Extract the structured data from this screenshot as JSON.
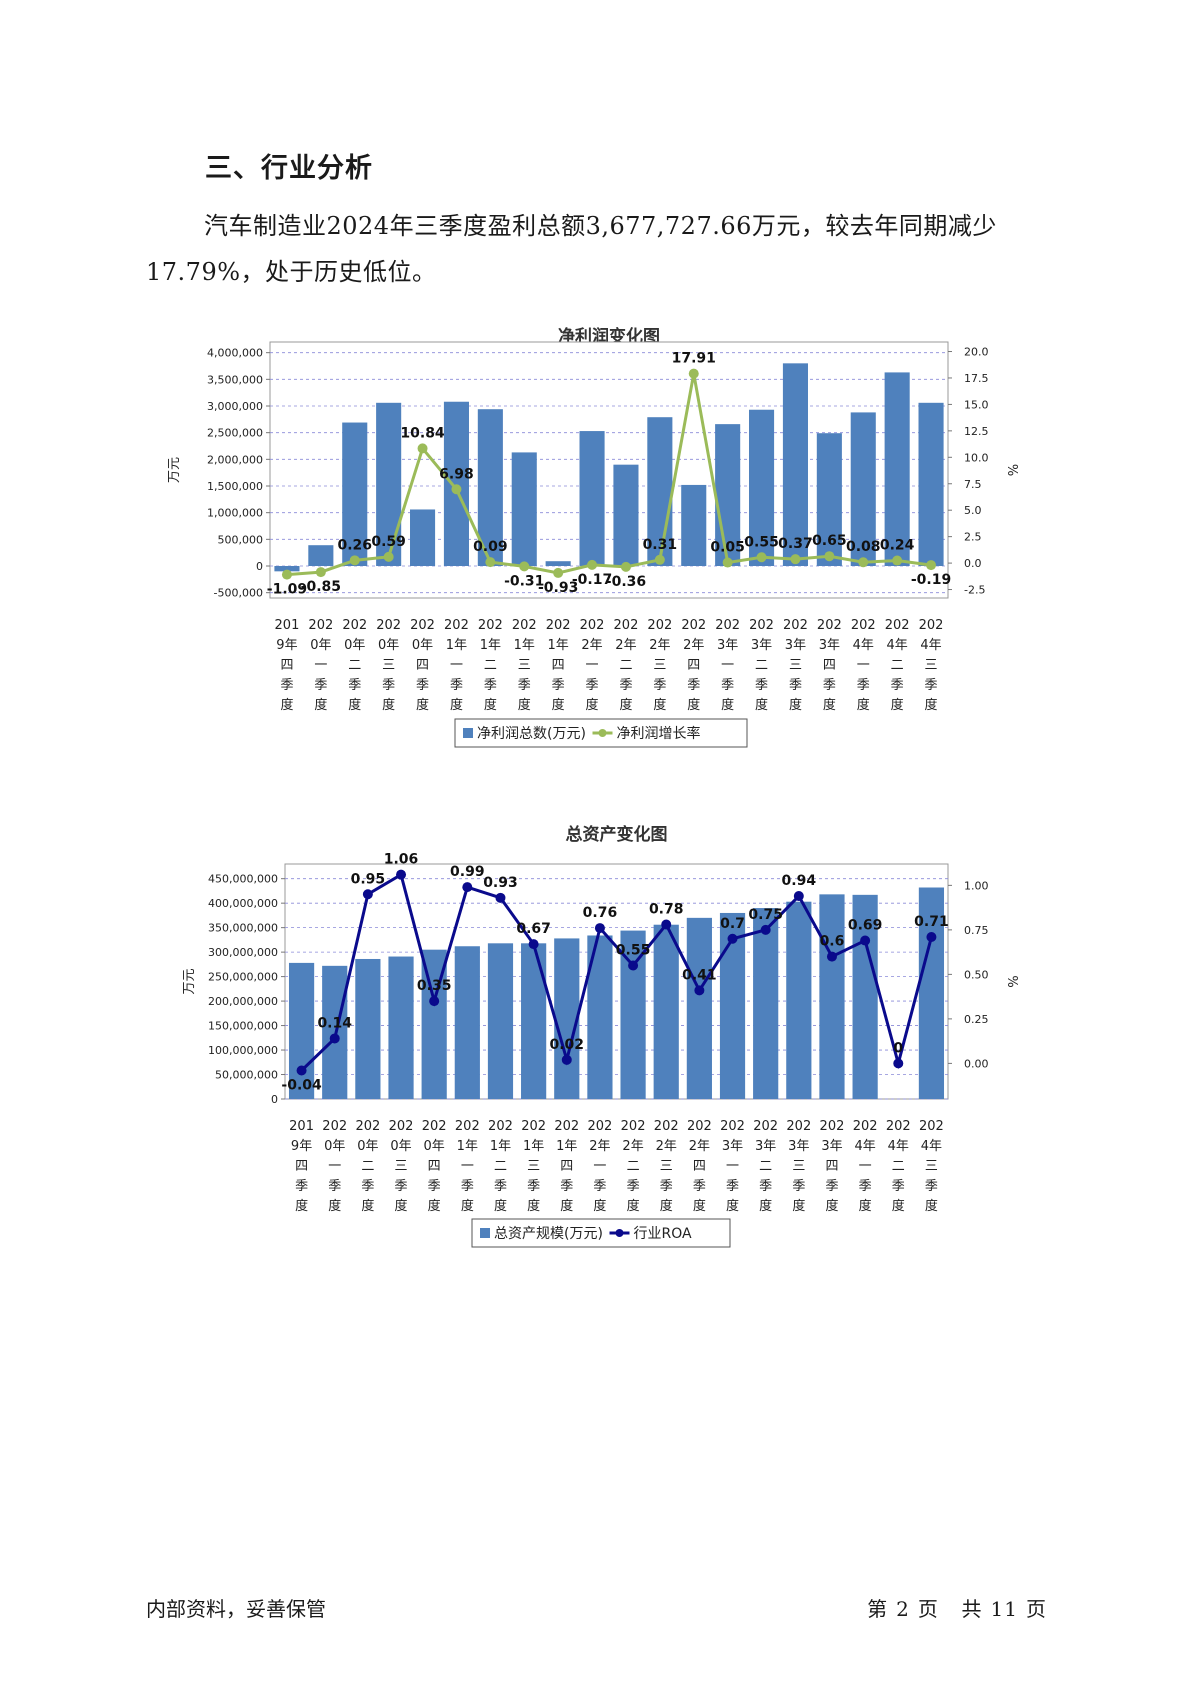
{
  "heading": "三、行业分析",
  "paragraph": "汽车制造业2024年三季度盈利总额3,677,727.66万元，较去年同期减少17.79%，处于历史低位。",
  "footer": {
    "left": "内部资料，妥善保管",
    "page_prefix": "第",
    "page_num": "2",
    "page_unit": "页",
    "total_prefix": "共",
    "total_num": "11",
    "total_unit": "页"
  },
  "chart_data": [
    {
      "type": "bar",
      "title": "净利润变化图",
      "ylabel": "万元",
      "y2label": "%",
      "ylim": [
        -600000,
        4200000
      ],
      "y_ticks": [
        -500000,
        0,
        500000,
        1000000,
        1500000,
        2000000,
        2500000,
        3000000,
        3500000,
        4000000
      ],
      "y_tick_labels": [
        "-500,000",
        "0",
        "500,000",
        "1,000,000",
        "1,500,000",
        "2,000,000",
        "2,500,000",
        "3,000,000",
        "3,500,000",
        "4,000,000"
      ],
      "y2lim": [
        -3.3,
        20.9
      ],
      "y2_ticks": [
        -2.5,
        0,
        2.5,
        5,
        7.5,
        10,
        12.5,
        15,
        17.5,
        20
      ],
      "y2_tick_labels": [
        "-2.5",
        "0.0",
        "2.5",
        "5.0",
        "7.5",
        "10.0",
        "12.5",
        "15.0",
        "17.5",
        "20.0"
      ],
      "grid": true,
      "legend_position": "bottom",
      "categories": [
        "2019年四季度",
        "2020年一季度",
        "2020年二季度",
        "2020年三季度",
        "2020年四季度",
        "2021年一季度",
        "2021年二季度",
        "2021年三季度",
        "2021年四季度",
        "2022年一季度",
        "2022年二季度",
        "2022年三季度",
        "2022年四季度",
        "2023年一季度",
        "2023年二季度",
        "2023年三季度",
        "2023年四季度",
        "2024年一季度",
        "2024年二季度",
        "2024年三季度"
      ],
      "series": [
        {
          "name": "净利润总数(万元)",
          "type": "bar",
          "axis": "left",
          "color": "#4f81bd",
          "values": [
            -100000,
            390000,
            2690000,
            3060000,
            1060000,
            3080000,
            2940000,
            2130000,
            90000,
            2530000,
            1900000,
            2790000,
            1520000,
            2660000,
            2930000,
            3800000,
            2490000,
            2880000,
            3630000,
            3060000
          ]
        },
        {
          "name": "净利润增长率",
          "type": "line",
          "axis": "right",
          "color": "#9bbb59",
          "values": [
            -1.09,
            -0.85,
            0.26,
            0.59,
            10.84,
            6.98,
            0.09,
            -0.31,
            -0.93,
            -0.17,
            -0.36,
            0.31,
            17.91,
            0.05,
            0.55,
            0.37,
            0.65,
            0.08,
            0.24,
            -0.19
          ],
          "labels": [
            "-1.09",
            "-0.85",
            "0.26",
            "0.59",
            "10.84",
            "6.98",
            "0.09",
            "-0.31",
            "-0.93",
            "-0.17",
            "-0.36",
            "0.31",
            "17.91",
            "0.05",
            "0.55",
            "0.37",
            "0.65",
            "0.08",
            "0.24",
            "-0.19"
          ]
        }
      ]
    },
    {
      "type": "bar",
      "title": "总资产变化图",
      "ylabel": "万元",
      "y2label": "%",
      "ylim": [
        0,
        480000000
      ],
      "y_ticks": [
        0,
        50000000,
        100000000,
        150000000,
        200000000,
        250000000,
        300000000,
        350000000,
        400000000,
        450000000
      ],
      "y_tick_labels": [
        "0",
        "50,000,000",
        "100,000,000",
        "150,000,000",
        "200,000,000",
        "250,000,000",
        "300,000,000",
        "350,000,000",
        "400,000,000",
        "450,000,000"
      ],
      "y2lim": [
        -0.2,
        1.12
      ],
      "y2_ticks": [
        0,
        0.25,
        0.5,
        0.75,
        1.0
      ],
      "y2_tick_labels": [
        "0.00",
        "0.25",
        "0.50",
        "0.75",
        "1.00"
      ],
      "grid": true,
      "legend_position": "bottom",
      "categories": [
        "2019年四季度",
        "2020年一季度",
        "2020年二季度",
        "2020年三季度",
        "2020年四季度",
        "2021年一季度",
        "2021年二季度",
        "2021年三季度",
        "2021年四季度",
        "2022年一季度",
        "2022年二季度",
        "2022年三季度",
        "2022年四季度",
        "2023年一季度",
        "2023年二季度",
        "2023年三季度",
        "2023年四季度",
        "2024年一季度",
        "2024年二季度",
        "2024年三季度"
      ],
      "series": [
        {
          "name": "总资产规模(万元)",
          "type": "bar",
          "axis": "left",
          "color": "#4f81bd",
          "values": [
            278000000,
            272000000,
            286000000,
            291000000,
            305000000,
            312000000,
            318000000,
            318000000,
            328000000,
            334000000,
            344000000,
            356000000,
            370000000,
            380000000,
            390000000,
            403000000,
            418000000,
            417000000,
            null,
            432000000
          ]
        },
        {
          "name": "行业ROA",
          "type": "line",
          "axis": "right",
          "color": "#0a0a8c",
          "values": [
            -0.04,
            0.14,
            0.95,
            1.06,
            0.35,
            0.99,
            0.93,
            0.67,
            0.02,
            0.76,
            0.55,
            0.78,
            0.41,
            0.7,
            0.75,
            0.94,
            0.6,
            0.69,
            0,
            0.71
          ],
          "labels": [
            "-0.04",
            "0.14",
            "0.95",
            "1.06",
            "0.35",
            "0.99",
            "0.93",
            "0.67",
            "0.02",
            "0.76",
            "0.55",
            "0.78",
            "0.41",
            "0.7",
            "0.75",
            "0.94",
            "0.6",
            "0.69",
            "0",
            "0.71"
          ]
        }
      ]
    }
  ]
}
